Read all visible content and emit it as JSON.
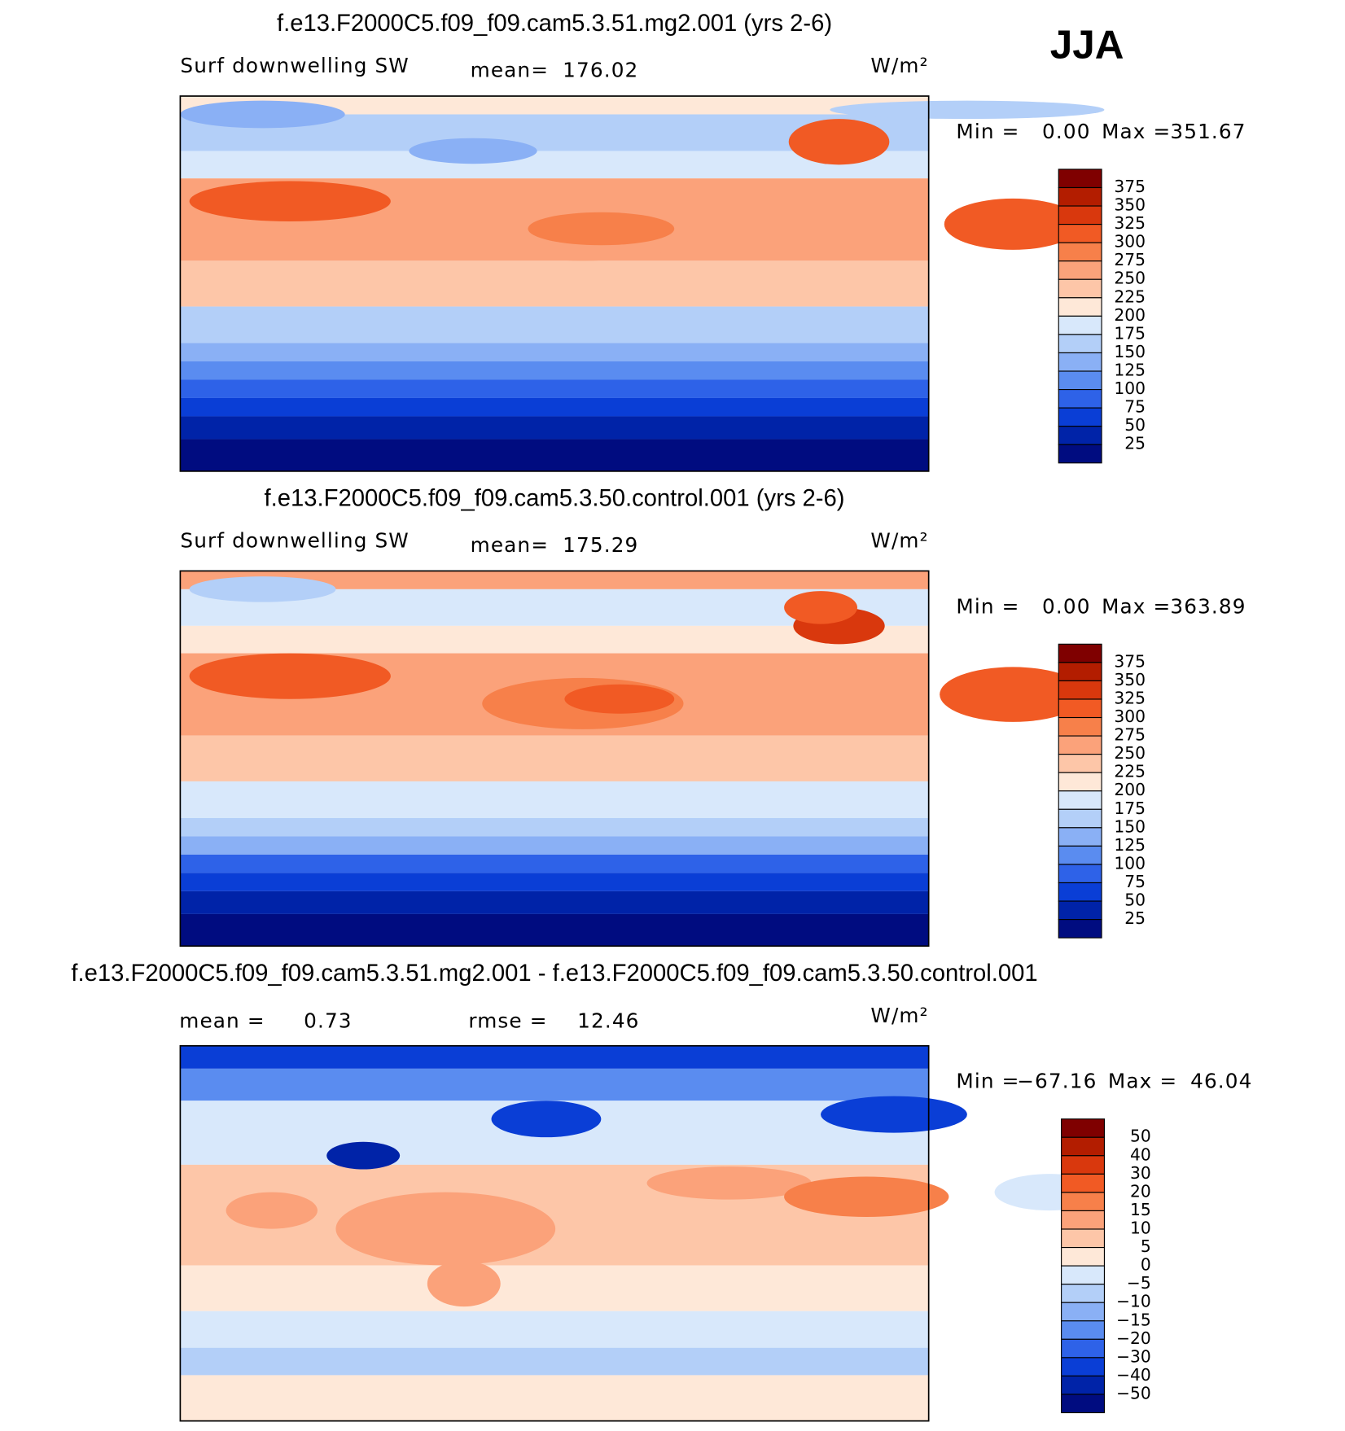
{
  "header": {
    "season": "JJA"
  },
  "colorbar_colors": [
    "#7f0000",
    "#b31d00",
    "#d9380d",
    "#f15a24",
    "#f7804a",
    "#fba27a",
    "#fdc6a8",
    "#fee8d8",
    "#d8e8fb",
    "#b3cff8",
    "#8ab0f5",
    "#5a8cf0",
    "#2e62e8",
    "#0a3ed6",
    "#0023a8",
    "#000c80"
  ],
  "panels": [
    {
      "title": "f.e13.F2000C5.f09_f09.cam5.3.51.mg2.001 (yrs 2-6)",
      "variable": "Surf downwelling SW",
      "stats": [
        {
          "label": "mean=",
          "value": "176.02"
        }
      ],
      "units": "W/m²",
      "min_label": "Min =",
      "min": "0.00",
      "max_label": "Max =",
      "max": "351.67",
      "levels": [
        "375",
        "350",
        "325",
        "300",
        "275",
        "250",
        "225",
        "200",
        "175",
        "150",
        "125",
        "100",
        "75",
        "50",
        "25"
      ]
    },
    {
      "title": "f.e13.F2000C5.f09_f09.cam5.3.50.control.001 (yrs 2-6)",
      "variable": "Surf downwelling SW",
      "stats": [
        {
          "label": "mean=",
          "value": "175.29"
        }
      ],
      "units": "W/m²",
      "min_label": "Min =",
      "min": "0.00",
      "max_label": "Max =",
      "max": "363.89",
      "levels": [
        "375",
        "350",
        "325",
        "300",
        "275",
        "250",
        "225",
        "200",
        "175",
        "150",
        "125",
        "100",
        "75",
        "50",
        "25"
      ]
    },
    {
      "title": "f.e13.F2000C5.f09_f09.cam5.3.51.mg2.001 - f.e13.F2000C5.f09_f09.cam5.3.50.control.001",
      "stats": [
        {
          "label": "mean =",
          "value": "0.73"
        },
        {
          "label": "rmse =",
          "value": "12.46"
        }
      ],
      "units": "W/m²",
      "min_label": "Min =",
      "min": "−67.16",
      "max_label": "Max =",
      "max": "46.04",
      "levels": [
        "50",
        "40",
        "30",
        "20",
        "15",
        "10",
        "5",
        "0",
        "−5",
        "−10",
        "−15",
        "−20",
        "−30",
        "−40",
        "−50"
      ]
    }
  ]
}
